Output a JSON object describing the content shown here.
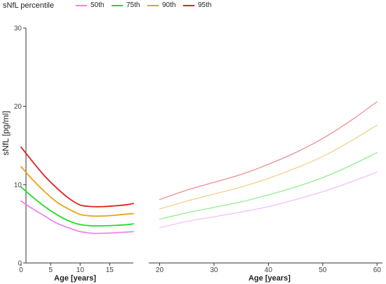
{
  "legend": {
    "title": "sNfL percentile",
    "items": [
      {
        "label": "50th",
        "color": "#ee82ee"
      },
      {
        "label": "75th",
        "color": "#22dd22"
      },
      {
        "label": "90th",
        "color": "#e8a317"
      },
      {
        "label": "95th",
        "color": "#dd2222"
      }
    ]
  },
  "chart_data": {
    "type": "line",
    "ylabel": "sNfL [pg/ml]",
    "ylim": [
      0,
      30
    ],
    "yticks": [
      "0",
      "10",
      "20",
      "30"
    ],
    "legend_position": "top-left",
    "grid": false,
    "panels": [
      {
        "name": "children",
        "xlabel": "Age [years]",
        "xlim": [
          0,
          19
        ],
        "xticks": [
          "0",
          "5",
          "10",
          "15"
        ],
        "faded": false,
        "series": [
          {
            "name": "50th",
            "color": "#ee82ee",
            "x": [
              0,
              2,
              4,
              6,
              8,
              10,
              12,
              14,
              16,
              18,
              19
            ],
            "y": [
              7.9,
              6.9,
              6.0,
              5.1,
              4.5,
              4.0,
              3.8,
              3.8,
              3.85,
              3.95,
              4.0
            ]
          },
          {
            "name": "75th",
            "color": "#22dd22",
            "x": [
              0,
              2,
              4,
              6,
              8,
              10,
              12,
              14,
              16,
              18,
              19
            ],
            "y": [
              9.7,
              8.4,
              7.2,
              6.2,
              5.4,
              4.9,
              4.75,
              4.75,
              4.8,
              4.9,
              5.0
            ]
          },
          {
            "name": "90th",
            "color": "#e8a317",
            "x": [
              0,
              2,
              4,
              6,
              8,
              10,
              12,
              14,
              16,
              18,
              19
            ],
            "y": [
              12.3,
              10.6,
              9.1,
              7.8,
              6.9,
              6.2,
              6.0,
              6.0,
              6.1,
              6.25,
              6.3
            ]
          },
          {
            "name": "95th",
            "color": "#dd2222",
            "x": [
              0,
              2,
              4,
              6,
              8,
              10,
              12,
              14,
              16,
              18,
              19
            ],
            "y": [
              14.8,
              12.9,
              11.1,
              9.6,
              8.3,
              7.4,
              7.2,
              7.2,
              7.3,
              7.45,
              7.6
            ]
          }
        ]
      },
      {
        "name": "adults",
        "xlabel": "Age [years]",
        "xlim": [
          18,
          61
        ],
        "xticks": [
          "20",
          "30",
          "40",
          "50",
          "60"
        ],
        "faded": true,
        "series": [
          {
            "name": "50th",
            "color": "#ee82ee",
            "x": [
              20,
              25,
              30,
              35,
              40,
              45,
              50,
              55,
              60
            ],
            "y": [
              4.5,
              5.3,
              5.9,
              6.5,
              7.2,
              8.1,
              9.1,
              10.3,
              11.6
            ]
          },
          {
            "name": "75th",
            "color": "#22dd22",
            "x": [
              20,
              25,
              30,
              35,
              40,
              45,
              50,
              55,
              60
            ],
            "y": [
              5.6,
              6.4,
              7.1,
              7.8,
              8.7,
              9.7,
              10.9,
              12.4,
              14.1
            ]
          },
          {
            "name": "90th",
            "color": "#e8a317",
            "x": [
              20,
              25,
              30,
              35,
              40,
              45,
              50,
              55,
              60
            ],
            "y": [
              6.9,
              7.9,
              8.8,
              9.7,
              10.8,
              12.1,
              13.6,
              15.5,
              17.6
            ]
          },
          {
            "name": "95th",
            "color": "#dd2222",
            "x": [
              20,
              25,
              30,
              35,
              40,
              45,
              50,
              55,
              60
            ],
            "y": [
              8.1,
              9.3,
              10.3,
              11.3,
              12.6,
              14.1,
              15.9,
              18.1,
              20.6
            ]
          }
        ]
      }
    ]
  }
}
